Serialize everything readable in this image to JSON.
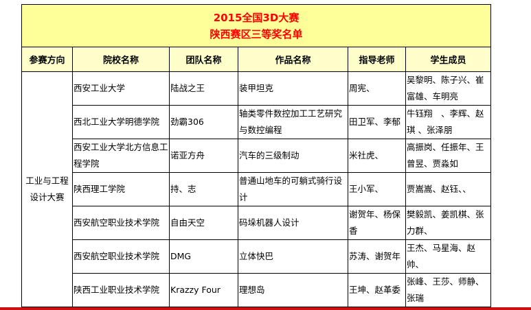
{
  "title": {
    "line1": "2015全国3D大赛",
    "line2": "陕西赛区三等奖名单"
  },
  "headers": [
    "参赛方向",
    "院校名称",
    "团队名称",
    "作品名称",
    "指导老师",
    "学生成员"
  ],
  "category": "工业与工程设计大赛",
  "rows": [
    {
      "school": "西安工业大学",
      "team": "陆战之王",
      "work": "装甲坦克",
      "teacher": "周宪、",
      "students": "吴黎明、陈子兴、崔富雄、车明亮"
    },
    {
      "school": "西北工业大学明德学院",
      "team": "劲霸306",
      "work": "轴类零件数控加工工艺研究与数控编程",
      "teacher": "田卫军、李郁",
      "students": "牛钰翔　、李辉、赵琪 、张泽朋"
    },
    {
      "school": "西安工业大学北方信息工程学院",
      "team": "诺亚方舟",
      "work": "汽车的三级制动",
      "teacher": "米社虎、",
      "students": "高振岗、任振年、王曾昱、贾淼如"
    },
    {
      "school": "陕西理工学院",
      "team": "持、志",
      "work": "普通山地车的可躺式骑行设计",
      "teacher": "王小军、",
      "students": "贾嵩嵩、赵钰、、"
    },
    {
      "school": "西安航空职业技术学院",
      "team": "自由天空",
      "work": "码垛机器人设计",
      "teacher": "谢贺年、杨保香",
      "students": "樊毅凯、姜凯棋、张力群、"
    },
    {
      "school": "西安航空职业技术学院",
      "team": "DMG",
      "work": "立体快巴",
      "teacher": "苏涛、谢贺年",
      "students": "王杰、马星海、赵帅、"
    },
    {
      "school": "陕西工业职业技术学院",
      "team": "Krazzy Four",
      "work": "理想岛",
      "teacher": "王坤、赵革委",
      "students": "张峰、王莎、师静、张瑞"
    }
  ],
  "colors": {
    "title_bg": "#FFFF99",
    "title_text": "#FF0000",
    "header_bg": "#FFFFCC",
    "bottom_bar": "#CC1111"
  }
}
